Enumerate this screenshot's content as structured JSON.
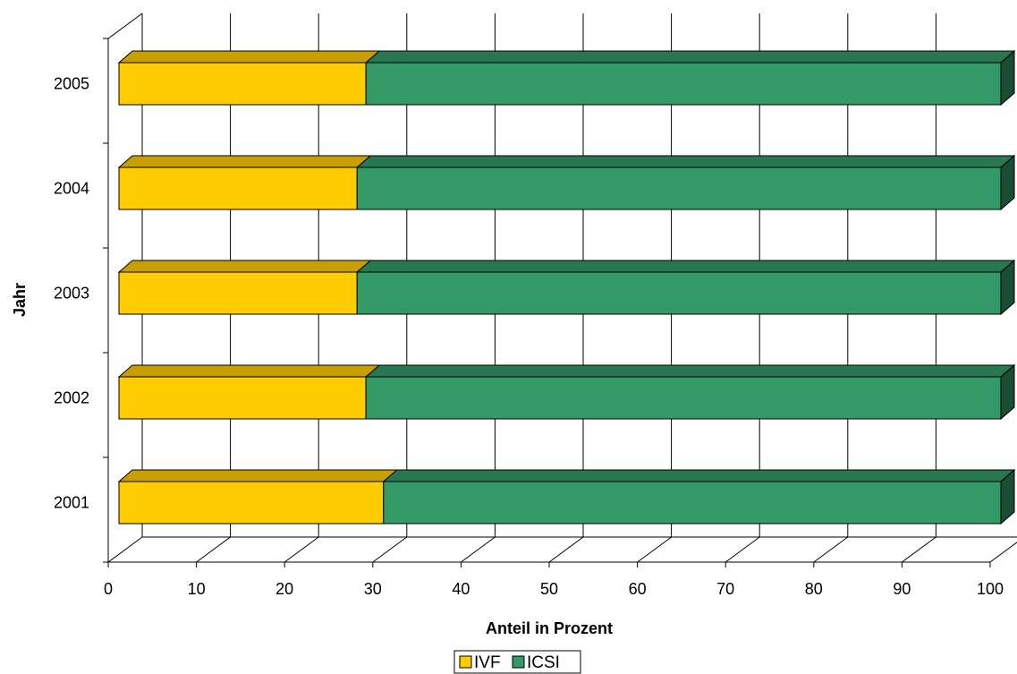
{
  "chart_data": {
    "type": "bar",
    "orientation": "horizontal",
    "stacked": "percent",
    "style": "3d",
    "categories": [
      "2001",
      "2002",
      "2003",
      "2004",
      "2005"
    ],
    "series": [
      {
        "name": "IVF",
        "values": [
          30,
          28,
          27,
          27,
          28
        ],
        "color": "#FFCC00"
      },
      {
        "name": "ICSI",
        "values": [
          70,
          72,
          73,
          73,
          72
        ],
        "color": "#339966"
      }
    ],
    "xlabel": "Anteil in Prozent",
    "ylabel": "Jahr",
    "xlim": [
      0,
      100
    ],
    "xticks": [
      "0",
      "10",
      "20",
      "30",
      "40",
      "50",
      "60",
      "70",
      "80",
      "90",
      "100"
    ],
    "grid": true,
    "legend": "bottom"
  }
}
